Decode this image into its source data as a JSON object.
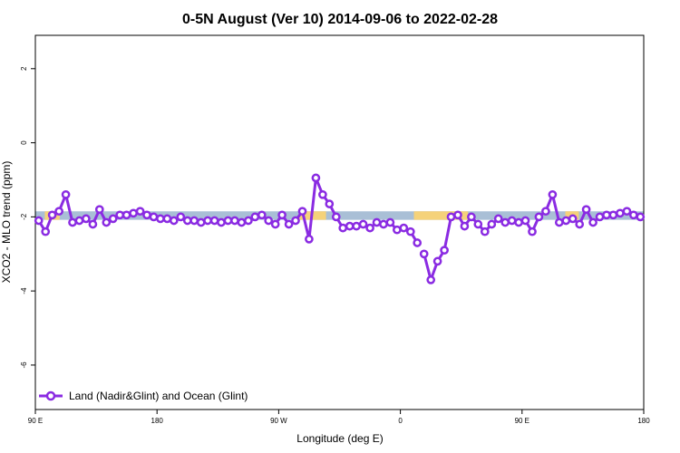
{
  "chart_data": {
    "type": "line",
    "title": "0-5N August (Ver 10)   2014-09-06 to 2022-02-28",
    "xlabel": "Longitude (deg E)",
    "ylabel": "XCO2 - MLO trend (ppm)",
    "xlim": [
      90,
      540
    ],
    "ylim": [
      -7.2,
      2.9
    ],
    "x_ticks": [
      {
        "value": 90,
        "label": "90 E"
      },
      {
        "value": 180,
        "label": "180"
      },
      {
        "value": 270,
        "label": "90 W"
      },
      {
        "value": 360,
        "label": "0"
      },
      {
        "value": 450,
        "label": "90 E"
      },
      {
        "value": 540,
        "label": "180"
      }
    ],
    "y_ticks": [
      {
        "value": 2,
        "label": "2"
      },
      {
        "value": 0,
        "label": "0"
      },
      {
        "value": -2,
        "label": "-2"
      },
      {
        "value": -4,
        "label": "-4"
      },
      {
        "value": -6,
        "label": "-6"
      }
    ],
    "grid": false,
    "legend_position": "bottom-left",
    "band": {
      "ymin": -2.08,
      "ymax": -1.85,
      "base_color": "#a9bfd6",
      "highlight_color": "#f5d27a",
      "highlight_ranges": [
        [
          97,
          108
        ],
        [
          285,
          305
        ],
        [
          370,
          410
        ],
        [
          482,
          492
        ]
      ]
    },
    "series": [
      {
        "name": "Land (Nadir&Glint) and Ocean (Glint)",
        "color": "#8a2be2",
        "segments": [
          {
            "x": [
              92.5,
              97.5,
              102.5,
              107.5,
              112.5,
              117.5,
              122.5,
              127.5,
              132.5,
              137.5,
              142.5,
              147.5,
              152.5,
              157.5,
              162.5,
              167.5,
              172.5,
              177.5,
              182.5,
              187.5,
              192.5,
              197.5,
              202.5,
              207.5,
              212.5,
              217.5,
              222.5,
              227.5,
              232.5,
              237.5,
              242.5,
              247.5,
              252.5,
              257.5,
              262.5,
              267.5,
              272.5,
              277.5,
              282.5,
              287.5,
              292.5,
              297.5,
              302.5,
              307.5,
              312.5,
              317.5,
              322.5,
              327.5,
              332.5,
              337.5,
              342.5,
              347.5,
              352.5,
              357.5,
              362.5
            ],
            "y": [
              -2.1,
              -2.4,
              -1.95,
              -1.85,
              -1.4,
              -2.15,
              -2.1,
              -2.05,
              -2.2,
              -1.8,
              -2.15,
              -2.05,
              -1.95,
              -1.95,
              -1.9,
              -1.85,
              -1.95,
              -2.0,
              -2.05,
              -2.05,
              -2.1,
              -2.0,
              -2.1,
              -2.1,
              -2.15,
              -2.1,
              -2.1,
              -2.15,
              -2.1,
              -2.1,
              -2.15,
              -2.1,
              -2.0,
              -1.95,
              -2.1,
              -2.2,
              -1.95,
              -2.2,
              -2.1,
              -1.85,
              -2.6,
              -0.95,
              -1.4,
              -1.65,
              -2.0,
              -2.3,
              -2.25,
              -2.25,
              -2.2,
              -2.3,
              -2.15,
              -2.2,
              -2.15,
              -2.35,
              -2.3
            ]
          },
          {
            "x": [
              367.5,
              372.5
            ],
            "y": [
              -2.4,
              -2.7
            ]
          },
          {
            "x": [
              377.5,
              382.5,
              387.5,
              392.5,
              397.5,
              402.5,
              407.5,
              412.5,
              417.5,
              422.5,
              427.5,
              432.5,
              437.5,
              442.5,
              447.5,
              452.5,
              457.5,
              462.5,
              467.5,
              472.5,
              477.5,
              482.5,
              487.5,
              492.5,
              497.5,
              502.5,
              507.5,
              512.5,
              517.5,
              522.5,
              527.5,
              532.5,
              537.5
            ],
            "y": [
              -3.0,
              -3.7,
              -3.2,
              -2.9,
              -2.0,
              -1.95,
              -2.25,
              -2.0,
              -2.2,
              -2.4,
              -2.2,
              -2.05,
              -2.15,
              -2.1,
              -2.15,
              -2.1,
              -2.4,
              -2.0,
              -1.85,
              -1.4,
              -2.15,
              -2.1,
              -2.05,
              -2.2,
              -1.8,
              -2.15,
              -2.0,
              -1.95,
              -1.95,
              -1.9,
              -1.85,
              -1.95,
              -2.0
            ]
          }
        ]
      }
    ]
  }
}
